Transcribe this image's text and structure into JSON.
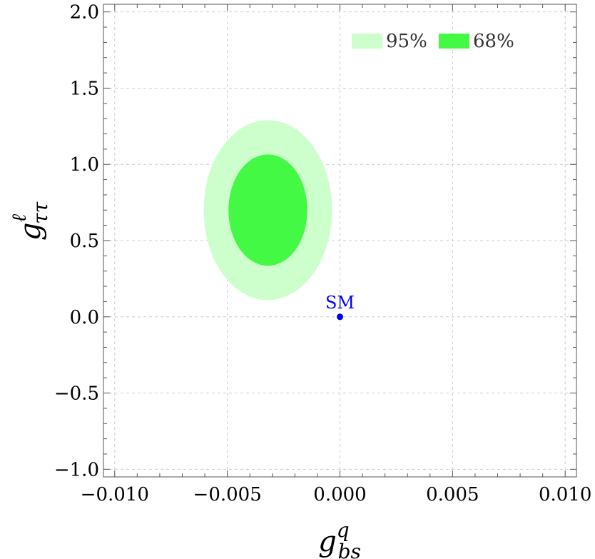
{
  "chart_data": {
    "type": "contour",
    "xlabel": {
      "main": "g",
      "sup": "q",
      "sub": "bs"
    },
    "ylabel": {
      "main": "g",
      "sup": "ℓ",
      "sub": "ττ"
    },
    "xlim": [
      -0.0105,
      0.0105
    ],
    "ylim": [
      -1.05,
      2.05
    ],
    "x_ticks": [
      -0.01,
      -0.005,
      0.0,
      0.005,
      0.01
    ],
    "x_tick_labels": [
      "−0.010",
      "−0.005",
      "0.000",
      "0.005",
      "0.010"
    ],
    "y_ticks": [
      -1.0,
      -0.5,
      0.0,
      0.5,
      1.0,
      1.5,
      2.0
    ],
    "y_tick_labels": [
      "−1.0",
      "−0.5",
      "0.0",
      "0.5",
      "1.0",
      "1.5",
      "2.0"
    ],
    "grid": true,
    "legend_position": "top-right",
    "regions": [
      {
        "name": "95%",
        "color": "#ccffcc",
        "center": [
          -0.0032,
          0.7
        ],
        "semi_axes": [
          0.00285,
          0.59
        ]
      },
      {
        "name": "68%",
        "color": "#44f944",
        "center": [
          -0.0032,
          0.7
        ],
        "semi_axes": [
          0.00175,
          0.365
        ]
      }
    ],
    "points": [
      {
        "label": "SM",
        "x": 0.0,
        "y": 0.0,
        "color": "#0000ff"
      }
    ]
  }
}
